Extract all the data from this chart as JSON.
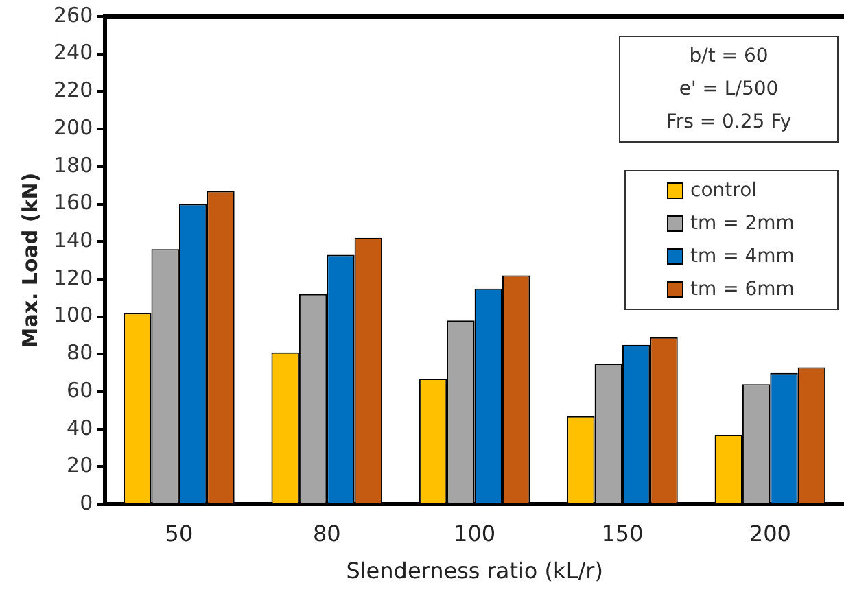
{
  "chart_data": {
    "type": "bar",
    "xlabel": "Slenderness ratio (kL/r)",
    "ylabel": "Max. Load (kN)",
    "categories": [
      "50",
      "80",
      "100",
      "150",
      "200"
    ],
    "series": [
      {
        "name": "control",
        "color": "#ffc000",
        "values": [
          102,
          81,
          67,
          47,
          37
        ]
      },
      {
        "name": "tm = 2mm",
        "color": "#a5a5a5",
        "values": [
          136,
          112,
          98,
          75,
          64
        ]
      },
      {
        "name": "tm = 4mm",
        "color": "#0070c0",
        "values": [
          160,
          133,
          115,
          85,
          70
        ]
      },
      {
        "name": "tm = 6mm",
        "color": "#c55a11",
        "values": [
          167,
          142,
          122,
          89,
          73
        ]
      }
    ],
    "ylim": [
      0,
      260
    ],
    "yticks": [
      0,
      20,
      40,
      60,
      80,
      100,
      120,
      140,
      160,
      180,
      200,
      220,
      240,
      260
    ],
    "grid": false,
    "legend": "top right",
    "annotations": [
      "b/t = 60",
      "e' = L/500",
      "Frs = 0.25 Fy"
    ]
  }
}
